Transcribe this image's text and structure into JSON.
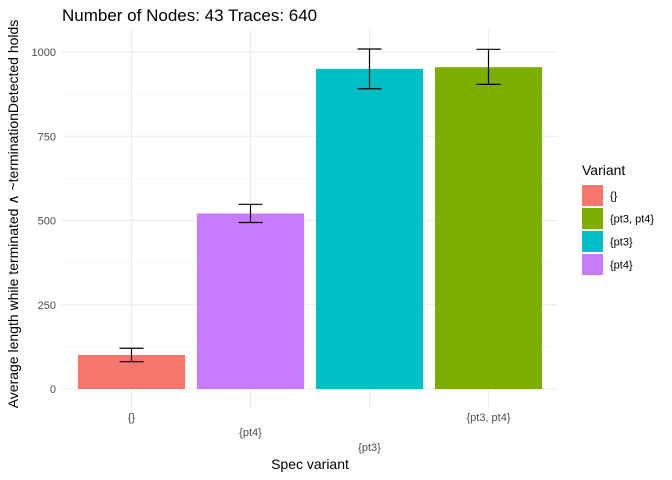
{
  "chart_data": {
    "type": "bar",
    "title": "Number of Nodes:  43 Traces: 640",
    "xlabel": "Spec variant",
    "ylabel": "Average length while terminated ∧ ~terminationDetected holds",
    "categories": [
      "{}",
      "{pt4}",
      "{pt3}",
      "{pt3, pt4}"
    ],
    "values": [
      101,
      521,
      950,
      955
    ],
    "error_low": [
      81,
      494,
      891,
      904
    ],
    "error_high": [
      121,
      548,
      1009,
      1008
    ],
    "bar_colors": [
      "#F8766D",
      "#C77CFF",
      "#00BFC4",
      "#7CAE00"
    ],
    "ylim": [
      0,
      1060
    ],
    "yticks": [
      0,
      250,
      500,
      750,
      1000
    ],
    "grid": true,
    "legend": {
      "title": "Variant",
      "position": "right",
      "entries": [
        {
          "label": "{}",
          "color": "#F8766D"
        },
        {
          "label": "{pt3, pt4}",
          "color": "#7CAE00"
        },
        {
          "label": "{pt3}",
          "color": "#00BFC4"
        },
        {
          "label": "{pt4}",
          "color": "#C77CFF"
        }
      ]
    }
  }
}
